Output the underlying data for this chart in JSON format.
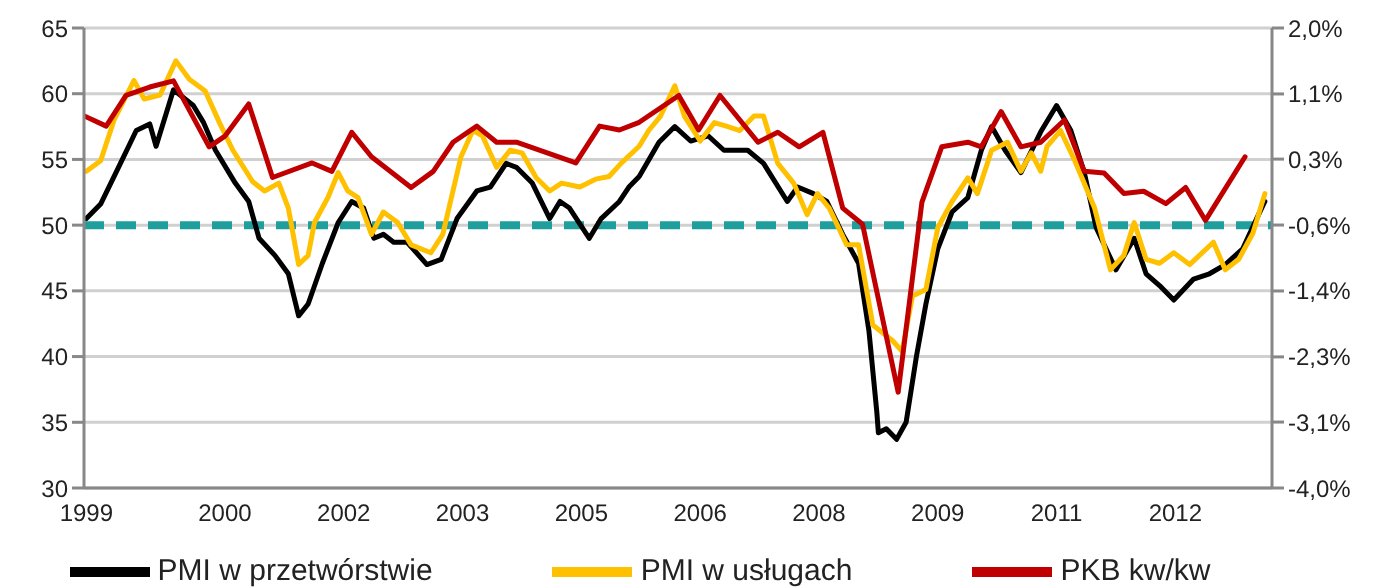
{
  "chart_data": {
    "type": "line",
    "xlim": [
      1998.72,
      2013.72
    ],
    "xticks": [
      {
        "value": 1998.75,
        "label": "1999"
      },
      {
        "value": 2000.5,
        "label": "2000"
      },
      {
        "value": 2002.0,
        "label": "2002"
      },
      {
        "value": 2003.5,
        "label": "2003"
      },
      {
        "value": 2005.0,
        "label": "2005"
      },
      {
        "value": 2006.5,
        "label": "2006"
      },
      {
        "value": 2008.0,
        "label": "2008"
      },
      {
        "value": 2009.5,
        "label": "2009"
      },
      {
        "value": 2011.0,
        "label": "2011"
      },
      {
        "value": 2012.5,
        "label": "2012"
      }
    ],
    "ylim": [
      30,
      65
    ],
    "yticks": [
      30,
      35,
      40,
      45,
      50,
      55,
      60,
      65
    ],
    "y2lim": [
      -4.0,
      2.0
    ],
    "y2ticks": [
      {
        "value": 2.0,
        "label": "2,0%"
      },
      {
        "value": 1.14,
        "label": "1,1%"
      },
      {
        "value": 0.29,
        "label": "0,3%"
      },
      {
        "value": -0.57,
        "label": "-0,6%"
      },
      {
        "value": -1.43,
        "label": "-1,4%"
      },
      {
        "value": -2.29,
        "label": "-2,3%"
      },
      {
        "value": -3.14,
        "label": "-3,1%"
      },
      {
        "value": -4.0,
        "label": "-4,0%"
      }
    ],
    "grid": "y",
    "legend": "bottom",
    "marker": "none",
    "line_style": "solid",
    "ref_lines": [
      {
        "axis": "y",
        "value": 50,
        "color": "#1f9e9e",
        "line_style": "dashed"
      }
    ],
    "series": [
      {
        "name": "PMI w przetwórstwie",
        "color": "#000000",
        "x": [
          1998.75,
          1998.93,
          1999.18,
          1999.38,
          1999.55,
          1999.63,
          1999.85,
          2000.1,
          2000.23,
          2000.38,
          2000.63,
          2000.8,
          2000.93,
          2001.13,
          2001.3,
          2001.43,
          2001.55,
          2001.73,
          2001.93,
          2002.1,
          2002.25,
          2002.38,
          2002.5,
          2002.63,
          2002.8,
          2003.05,
          2003.23,
          2003.43,
          2003.68,
          2003.85,
          2004.05,
          2004.18,
          2004.38,
          2004.6,
          2004.73,
          2004.85,
          2005.1,
          2005.25,
          2005.48,
          2005.6,
          2005.73,
          2005.98,
          2006.18,
          2006.38,
          2006.6,
          2006.8,
          2007.1,
          2007.3,
          2007.6,
          2007.73,
          2007.93,
          2008.1,
          2008.3,
          2008.5,
          2008.63,
          2008.73,
          2008.75,
          2008.85,
          2008.98,
          2009.1,
          2009.23,
          2009.35,
          2009.5,
          2009.68,
          2009.88,
          2010.05,
          2010.18,
          2010.35,
          2010.55,
          2010.8,
          2011.0,
          2011.18,
          2011.35,
          2011.5,
          2011.75,
          2011.98,
          2012.13,
          2012.3,
          2012.48,
          2012.73,
          2012.93,
          2013.13,
          2013.35,
          2013.55,
          2013.63
        ],
        "values": [
          50.5,
          51.6,
          54.7,
          57.2,
          57.7,
          56.0,
          60.3,
          59.1,
          57.8,
          55.7,
          53.2,
          51.8,
          49.0,
          47.7,
          46.3,
          43.1,
          44.0,
          47.1,
          50.2,
          51.8,
          51.3,
          49.0,
          49.3,
          48.7,
          48.7,
          47.0,
          47.4,
          50.5,
          52.6,
          52.9,
          54.7,
          54.4,
          53.2,
          50.5,
          51.8,
          51.3,
          49.0,
          50.5,
          51.8,
          52.9,
          53.7,
          56.3,
          57.5,
          56.4,
          56.8,
          55.7,
          55.7,
          54.7,
          51.8,
          52.9,
          52.4,
          51.8,
          49.3,
          47.1,
          42.0,
          35.8,
          34.2,
          34.5,
          33.7,
          35.0,
          40.0,
          44.0,
          48.2,
          51.0,
          52.1,
          55.7,
          57.5,
          55.7,
          54.0,
          57.1,
          59.1,
          57.2,
          54.0,
          49.8,
          46.6,
          49.0,
          46.3,
          45.4,
          44.3,
          45.9,
          46.3,
          47.0,
          48.2,
          50.8,
          51.8
        ]
      },
      {
        "name": "PMI w usługach",
        "color": "#ffc000",
        "x": [
          1998.75,
          1998.93,
          1999.1,
          1999.35,
          1999.48,
          1999.68,
          1999.88,
          2000.05,
          2000.25,
          2000.43,
          2000.6,
          2000.85,
          2001.0,
          2001.18,
          2001.3,
          2001.43,
          2001.55,
          2001.63,
          2001.8,
          2001.93,
          2002.05,
          2002.18,
          2002.35,
          2002.5,
          2002.68,
          2002.85,
          2003.1,
          2003.25,
          2003.48,
          2003.63,
          2003.75,
          2003.93,
          2004.1,
          2004.25,
          2004.43,
          2004.6,
          2004.75,
          2004.98,
          2005.18,
          2005.35,
          2005.5,
          2005.73,
          2005.85,
          2006.0,
          2006.18,
          2006.3,
          2006.5,
          2006.68,
          2006.85,
          2007.0,
          2007.18,
          2007.3,
          2007.48,
          2007.68,
          2007.85,
          2007.98,
          2008.13,
          2008.35,
          2008.5,
          2008.68,
          2008.93,
          2009.05,
          2009.18,
          2009.35,
          2009.5,
          2009.68,
          2009.88,
          2010.0,
          2010.18,
          2010.38,
          2010.55,
          2010.68,
          2010.8,
          2010.88,
          2011.05,
          2011.23,
          2011.48,
          2011.68,
          2011.85,
          2011.98,
          2012.13,
          2012.3,
          2012.48,
          2012.68,
          2012.98,
          2013.13,
          2013.3,
          2013.48,
          2013.63
        ],
        "values": [
          54.1,
          54.9,
          58.0,
          61.0,
          59.6,
          59.9,
          62.5,
          61.1,
          60.2,
          57.8,
          55.7,
          53.3,
          52.6,
          53.2,
          51.3,
          47.0,
          47.7,
          50.2,
          52.1,
          54.0,
          52.6,
          52.1,
          49.3,
          51.0,
          50.2,
          48.5,
          47.9,
          49.3,
          55.2,
          57.2,
          56.8,
          54.4,
          55.7,
          55.5,
          53.6,
          52.6,
          53.2,
          52.9,
          53.5,
          53.7,
          54.7,
          56.0,
          57.2,
          58.3,
          60.6,
          58.3,
          56.4,
          57.8,
          57.5,
          57.2,
          58.3,
          58.3,
          54.7,
          53.2,
          50.8,
          52.4,
          51.3,
          48.5,
          48.5,
          42.4,
          41.2,
          40.4,
          44.6,
          45.1,
          49.8,
          51.8,
          53.6,
          52.4,
          55.7,
          56.3,
          54.1,
          55.5,
          54.1,
          56.0,
          57.2,
          54.9,
          51.3,
          46.6,
          47.7,
          50.2,
          47.4,
          47.1,
          47.9,
          47.0,
          48.7,
          46.6,
          47.4,
          49.4,
          52.4
        ]
      },
      {
        "name": "PKB kw/kw",
        "color": "#c00000",
        "axis": "y2",
        "x": [
          1998.73,
          1999.0,
          1999.25,
          1999.55,
          1999.85,
          2000.3,
          2000.5,
          2000.8,
          2001.1,
          2001.6,
          2001.85,
          2002.1,
          2002.35,
          2002.85,
          2003.13,
          2003.38,
          2003.68,
          2003.93,
          2004.18,
          2004.93,
          2005.23,
          2005.48,
          2005.73,
          2006.23,
          2006.48,
          2006.75,
          2007.23,
          2007.48,
          2007.75,
          2008.05,
          2008.3,
          2008.55,
          2009.0,
          2009.3,
          2009.55,
          2009.88,
          2010.05,
          2010.3,
          2010.55,
          2010.8,
          2011.1,
          2011.35,
          2011.6,
          2011.85,
          2012.1,
          2012.38,
          2012.63,
          2012.88,
          2013.38
        ],
        "values": [
          0.85,
          0.72,
          1.12,
          1.23,
          1.31,
          0.45,
          0.59,
          1.01,
          0.05,
          0.24,
          0.13,
          0.64,
          0.32,
          -0.08,
          0.13,
          0.51,
          0.72,
          0.51,
          0.51,
          0.24,
          0.72,
          0.67,
          0.77,
          1.12,
          0.67,
          1.12,
          0.51,
          0.64,
          0.45,
          0.64,
          -0.35,
          -0.56,
          -2.75,
          -0.27,
          0.45,
          0.51,
          0.45,
          0.91,
          0.45,
          0.51,
          0.8,
          0.13,
          0.11,
          -0.16,
          -0.13,
          -0.29,
          -0.08,
          -0.51,
          0.32
        ]
      }
    ]
  }
}
